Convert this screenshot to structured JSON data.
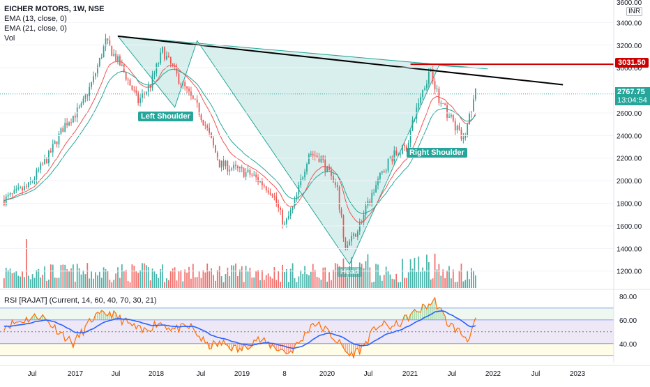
{
  "header": {
    "title": "EICHER MOTORS, 1W, NSE",
    "ema1": "EMA (13, close, 0)",
    "ema2": "EMA (21, close, 0)",
    "vol": "Vol",
    "currency": "INR"
  },
  "annotations": {
    "left_shoulder": "Left Shoulder",
    "right_shoulder": "Right Shoulder",
    "head": "Head",
    "resistance_label": "3031.50",
    "last_price": "2767.75",
    "countdown": "13:04:54"
  },
  "rsi": {
    "label": "RSI [RAJAT] (Current, 14, 60, 40, 70, 30, 21)"
  },
  "colors": {
    "up": "#26a69a",
    "down": "#ef5350",
    "ema13": "#ef5350",
    "ema21": "#26a69a",
    "neckline": "#000000",
    "resistance": "#cc0000",
    "pattern_fill": "#b2dfdb",
    "rsi_line": "#ff6d00",
    "rsi_ma": "#2962ff"
  },
  "chart_data": [
    {
      "type": "candlestick",
      "ylim": [
        1050,
        3600
      ],
      "y_ticks": [
        1200,
        1400,
        1600,
        1800,
        2000,
        2200,
        2400,
        2600,
        3000,
        3200,
        3400
      ],
      "y_tick_labels": [
        "1200.00",
        "1400.00",
        "1600.00",
        "1800.00",
        "2000.00",
        "2200.00",
        "2400.00",
        "2600.00",
        "3000.00",
        "3200.00",
        "3400.00"
      ],
      "top_tick_label": "3600.00",
      "x_ticks": [
        "Jul",
        "2017",
        "Jul",
        "2018",
        "Jul",
        "2019",
        "8",
        "2020",
        "Jul",
        "2021",
        "Jul",
        "2022",
        "Jul",
        "2023"
      ],
      "resistance": 3031.5,
      "last_close": 2767.75,
      "anchors": [
        {
          "t": 0,
          "p": 1830
        },
        {
          "t": 12,
          "p": 1950
        },
        {
          "t": 22,
          "p": 2220
        },
        {
          "t": 30,
          "p": 2500
        },
        {
          "t": 38,
          "p": 2650
        },
        {
          "t": 44,
          "p": 2900
        },
        {
          "t": 50,
          "p": 3230
        },
        {
          "t": 58,
          "p": 3000
        },
        {
          "t": 66,
          "p": 2700
        },
        {
          "t": 72,
          "p": 2850
        },
        {
          "t": 78,
          "p": 3150
        },
        {
          "t": 86,
          "p": 2900
        },
        {
          "t": 95,
          "p": 2650
        },
        {
          "t": 100,
          "p": 2450
        },
        {
          "t": 106,
          "p": 2150
        },
        {
          "t": 114,
          "p": 2100
        },
        {
          "t": 122,
          "p": 2050
        },
        {
          "t": 132,
          "p": 1900
        },
        {
          "t": 138,
          "p": 1600
        },
        {
          "t": 143,
          "p": 1800
        },
        {
          "t": 150,
          "p": 2250
        },
        {
          "t": 156,
          "p": 2200
        },
        {
          "t": 164,
          "p": 1900
        },
        {
          "t": 168,
          "p": 1400
        },
        {
          "t": 172,
          "p": 1500
        },
        {
          "t": 176,
          "p": 1650
        },
        {
          "t": 184,
          "p": 2000
        },
        {
          "t": 190,
          "p": 2200
        },
        {
          "t": 198,
          "p": 2300
        },
        {
          "t": 204,
          "p": 2700
        },
        {
          "t": 210,
          "p": 3000
        },
        {
          "t": 214,
          "p": 2700
        },
        {
          "t": 220,
          "p": 2550
        },
        {
          "t": 226,
          "p": 2350
        },
        {
          "t": 232,
          "p": 2780
        }
      ],
      "neckline": [
        {
          "t": 56,
          "p": 3280
        },
        {
          "t": 275,
          "p": 2850
        }
      ],
      "pattern": [
        {
          "t": 56,
          "p": 3280
        },
        {
          "t": 84,
          "p": 2650
        },
        {
          "t": 95,
          "p": 3240
        },
        {
          "t": 170,
          "p": 1260
        },
        {
          "t": 214,
          "p": 3020
        },
        {
          "t": 238,
          "p": 2990
        }
      ]
    },
    {
      "type": "line",
      "name": "RSI",
      "ylim": [
        24,
        84
      ],
      "y_ticks": [
        40,
        60,
        80
      ],
      "y_tick_labels": [
        "40.00",
        "60.00",
        "80.00"
      ],
      "bands": [
        30,
        40,
        60,
        70
      ],
      "anchors": [
        {
          "t": 0,
          "v": 55
        },
        {
          "t": 10,
          "v": 60
        },
        {
          "t": 18,
          "v": 64
        },
        {
          "t": 26,
          "v": 52
        },
        {
          "t": 34,
          "v": 40
        },
        {
          "t": 44,
          "v": 62
        },
        {
          "t": 52,
          "v": 66
        },
        {
          "t": 60,
          "v": 58
        },
        {
          "t": 68,
          "v": 50
        },
        {
          "t": 76,
          "v": 58
        },
        {
          "t": 84,
          "v": 52
        },
        {
          "t": 92,
          "v": 54
        },
        {
          "t": 100,
          "v": 38
        },
        {
          "t": 108,
          "v": 40
        },
        {
          "t": 116,
          "v": 34
        },
        {
          "t": 124,
          "v": 44
        },
        {
          "t": 132,
          "v": 38
        },
        {
          "t": 140,
          "v": 32
        },
        {
          "t": 146,
          "v": 42
        },
        {
          "t": 152,
          "v": 58
        },
        {
          "t": 158,
          "v": 52
        },
        {
          "t": 164,
          "v": 42
        },
        {
          "t": 170,
          "v": 30
        },
        {
          "t": 176,
          "v": 36
        },
        {
          "t": 184,
          "v": 56
        },
        {
          "t": 192,
          "v": 54
        },
        {
          "t": 200,
          "v": 64
        },
        {
          "t": 206,
          "v": 70
        },
        {
          "t": 212,
          "v": 76
        },
        {
          "t": 218,
          "v": 58
        },
        {
          "t": 224,
          "v": 50
        },
        {
          "t": 228,
          "v": 44
        },
        {
          "t": 232,
          "v": 58
        }
      ]
    }
  ]
}
